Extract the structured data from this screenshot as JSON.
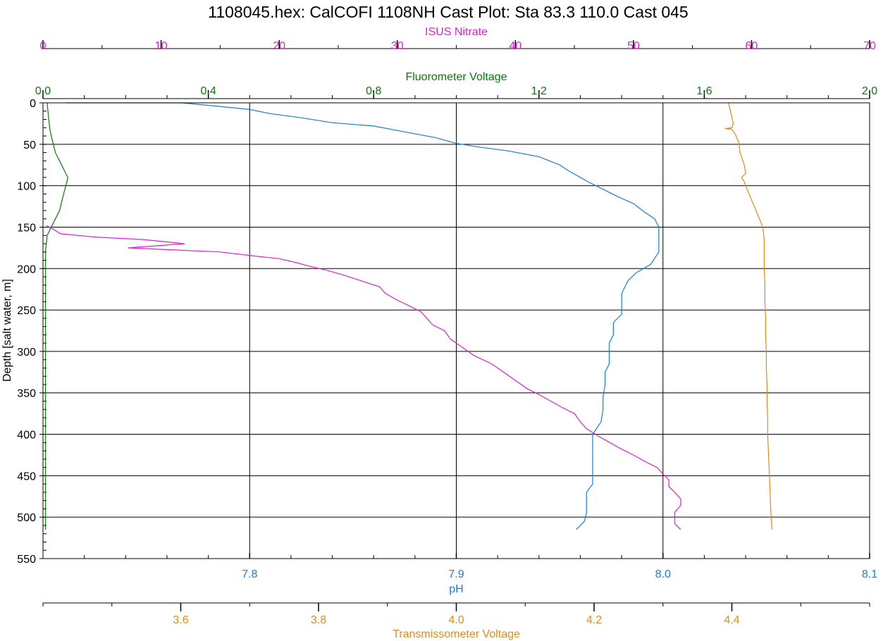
{
  "chart_data": {
    "type": "line",
    "title": "1108045.hex: CalCOFI 1108NH Cast Plot: Sta 83.3  110.0  Cast 045",
    "y_axis": {
      "label": "Depth [salt water, m]",
      "range": [
        0,
        550
      ],
      "inverted": true,
      "ticks": [
        "0",
        "50",
        "100",
        "150",
        "200",
        "250",
        "300",
        "350",
        "400",
        "450",
        "500",
        "550"
      ]
    },
    "grid": true,
    "axes": [
      {
        "key": "nitrate",
        "label": "ISUS Nitrate",
        "position": "top",
        "range": [
          0,
          70
        ],
        "color": "#e020d0",
        "ticks": [
          "0",
          "10",
          "20",
          "30",
          "40",
          "50",
          "60",
          "70"
        ]
      },
      {
        "key": "fluor",
        "label": "Fluorometer Voltage",
        "position": "top",
        "range": [
          0,
          2
        ],
        "color": "#0a7a0a",
        "ticks": [
          "0.0",
          "0.4",
          "0.8",
          "1.2",
          "1.6",
          "2.0"
        ]
      },
      {
        "key": "ph",
        "label": "pH",
        "position": "bottom",
        "range": [
          7.7,
          8.1
        ],
        "color": "#1a7fd4",
        "ticks": [
          "7.8",
          "7.9",
          "8.0",
          "8.1"
        ]
      },
      {
        "key": "trans",
        "label": "Transmissometer Voltage",
        "position": "bottom",
        "range": [
          3.4,
          4.6
        ],
        "color": "#e08c1a",
        "ticks": [
          "3.6",
          "3.8",
          "4.0",
          "4.2",
          "4.4"
        ]
      }
    ],
    "series": [
      {
        "axis": "ph",
        "color": "#1a7fd4",
        "points": [
          [
            7.711,
            0
          ],
          [
            7.767,
            0
          ],
          [
            7.78,
            3
          ],
          [
            7.8,
            8
          ],
          [
            7.81,
            13
          ],
          [
            7.825,
            18
          ],
          [
            7.84,
            24
          ],
          [
            7.86,
            28
          ],
          [
            7.875,
            35
          ],
          [
            7.89,
            42
          ],
          [
            7.9,
            49
          ],
          [
            7.91,
            53
          ],
          [
            7.925,
            58
          ],
          [
            7.94,
            65
          ],
          [
            7.95,
            75
          ],
          [
            7.955,
            83
          ],
          [
            7.96,
            90
          ],
          [
            7.965,
            97
          ],
          [
            7.97,
            103
          ],
          [
            7.978,
            113
          ],
          [
            7.986,
            122
          ],
          [
            7.99,
            130
          ],
          [
            7.996,
            140
          ],
          [
            7.998,
            150
          ],
          [
            7.998,
            165
          ],
          [
            7.998,
            180
          ],
          [
            7.994,
            195
          ],
          [
            7.987,
            205
          ],
          [
            7.983,
            215
          ],
          [
            7.98,
            230
          ],
          [
            7.98,
            245
          ],
          [
            7.98,
            255
          ],
          [
            7.976,
            265
          ],
          [
            7.976,
            280
          ],
          [
            7.974,
            290
          ],
          [
            7.974,
            300
          ],
          [
            7.974,
            315
          ],
          [
            7.972,
            325
          ],
          [
            7.972,
            340
          ],
          [
            7.971,
            355
          ],
          [
            7.971,
            370
          ],
          [
            7.97,
            385
          ],
          [
            7.966,
            400
          ],
          [
            7.966,
            415
          ],
          [
            7.966,
            430
          ],
          [
            7.966,
            445
          ],
          [
            7.966,
            460
          ],
          [
            7.963,
            470
          ],
          [
            7.963,
            485
          ],
          [
            7.963,
            495
          ],
          [
            7.962,
            505
          ],
          [
            7.96,
            510
          ],
          [
            7.958,
            515
          ]
        ]
      },
      {
        "axis": "trans",
        "color": "#e08c1a",
        "points": [
          [
            4.395,
            0
          ],
          [
            4.398,
            10
          ],
          [
            4.402,
            25
          ],
          [
            4.4,
            30
          ],
          [
            4.39,
            31
          ],
          [
            4.4,
            32
          ],
          [
            4.405,
            38
          ],
          [
            4.41,
            48
          ],
          [
            4.412,
            60
          ],
          [
            4.418,
            75
          ],
          [
            4.42,
            85
          ],
          [
            4.414,
            90
          ],
          [
            4.418,
            95
          ],
          [
            4.42,
            100
          ],
          [
            4.425,
            110
          ],
          [
            4.43,
            120
          ],
          [
            4.435,
            130
          ],
          [
            4.44,
            140
          ],
          [
            4.445,
            150
          ],
          [
            4.447,
            165
          ],
          [
            4.447,
            180
          ],
          [
            4.447,
            200
          ],
          [
            4.448,
            220
          ],
          [
            4.448,
            240
          ],
          [
            4.449,
            260
          ],
          [
            4.449,
            280
          ],
          [
            4.45,
            300
          ],
          [
            4.45,
            320
          ],
          [
            4.451,
            340
          ],
          [
            4.451,
            360
          ],
          [
            4.452,
            380
          ],
          [
            4.452,
            400
          ],
          [
            4.453,
            420
          ],
          [
            4.454,
            440
          ],
          [
            4.455,
            460
          ],
          [
            4.456,
            480
          ],
          [
            4.457,
            500
          ],
          [
            4.458,
            510
          ],
          [
            4.458,
            515
          ]
        ]
      },
      {
        "axis": "fluor",
        "color": "#0a7a0a",
        "points": [
          [
            0.01,
            0
          ],
          [
            0.012,
            10
          ],
          [
            0.014,
            20
          ],
          [
            0.016,
            30
          ],
          [
            0.02,
            40
          ],
          [
            0.025,
            50
          ],
          [
            0.03,
            60
          ],
          [
            0.04,
            70
          ],
          [
            0.05,
            80
          ],
          [
            0.06,
            90
          ],
          [
            0.058,
            95
          ],
          [
            0.055,
            100
          ],
          [
            0.05,
            110
          ],
          [
            0.045,
            120
          ],
          [
            0.04,
            130
          ],
          [
            0.03,
            140
          ],
          [
            0.02,
            150
          ],
          [
            0.01,
            160
          ],
          [
            0.008,
            170
          ],
          [
            0.006,
            180
          ],
          [
            0.006,
            200
          ],
          [
            0.006,
            250
          ],
          [
            0.006,
            300
          ],
          [
            0.006,
            350
          ],
          [
            0.006,
            400
          ],
          [
            0.006,
            450
          ],
          [
            0.006,
            500
          ],
          [
            0.006,
            515
          ]
        ]
      },
      {
        "axis": "nitrate",
        "color": "#e020d0",
        "points": [
          [
            0.3,
            148
          ],
          [
            0.8,
            152
          ],
          [
            1.5,
            158
          ],
          [
            4.5,
            162
          ],
          [
            8.5,
            165
          ],
          [
            12,
            170
          ],
          [
            7.2,
            175
          ],
          [
            15,
            180
          ],
          [
            18,
            185
          ],
          [
            20,
            188
          ],
          [
            21.5,
            193
          ],
          [
            22.5,
            197
          ],
          [
            24,
            202
          ],
          [
            25.5,
            208
          ],
          [
            27,
            215
          ],
          [
            28.5,
            222
          ],
          [
            29,
            230
          ],
          [
            30,
            238
          ],
          [
            31,
            245
          ],
          [
            32,
            252
          ],
          [
            32.5,
            260
          ],
          [
            33,
            268
          ],
          [
            34,
            275
          ],
          [
            34.5,
            285
          ],
          [
            35.5,
            295
          ],
          [
            36.5,
            305
          ],
          [
            38,
            315
          ],
          [
            39,
            325
          ],
          [
            40,
            335
          ],
          [
            41,
            345
          ],
          [
            42,
            352
          ],
          [
            43,
            360
          ],
          [
            44,
            368
          ],
          [
            45,
            375
          ],
          [
            45.5,
            385
          ],
          [
            46,
            393
          ],
          [
            47,
            402
          ],
          [
            48,
            410
          ],
          [
            49,
            418
          ],
          [
            50,
            425
          ],
          [
            51,
            433
          ],
          [
            52,
            440
          ],
          [
            52.5,
            448
          ],
          [
            53,
            455
          ],
          [
            53,
            463
          ],
          [
            53.5,
            470
          ],
          [
            54,
            478
          ],
          [
            54,
            486
          ],
          [
            53.5,
            494
          ],
          [
            53.5,
            502
          ],
          [
            53.5,
            508
          ],
          [
            54,
            515
          ]
        ]
      }
    ]
  }
}
